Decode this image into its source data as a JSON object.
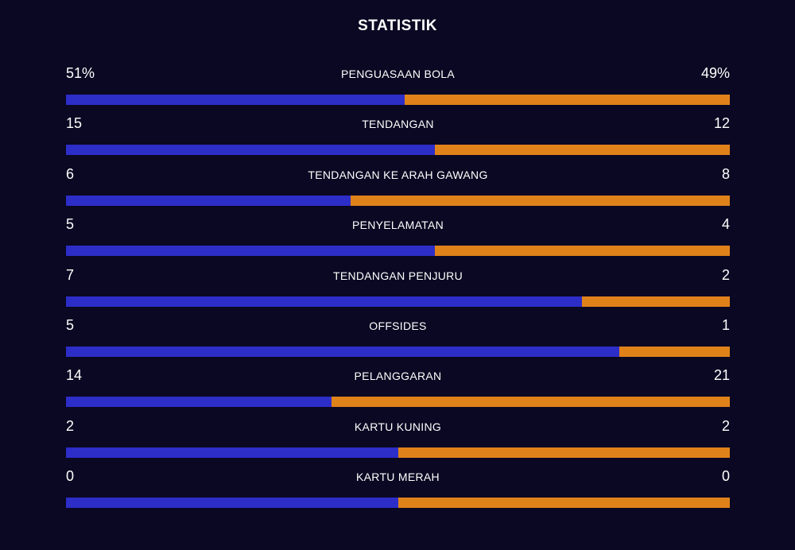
{
  "title": "STATISTIK",
  "colors": {
    "background": "#0a0822",
    "home": "#2d2dc8",
    "away": "#e0821a"
  },
  "stats": [
    {
      "label": "PENGUASAAN BOLA",
      "home": "51%",
      "away": "49%",
      "home_share": 0.51
    },
    {
      "label": "TENDANGAN",
      "home": "15",
      "away": "12",
      "home_share": 0.5556
    },
    {
      "label": "TENDANGAN KE ARAH GAWANG",
      "home": "6",
      "away": "8",
      "home_share": 0.4286
    },
    {
      "label": "PENYELAMATAN",
      "home": "5",
      "away": "4",
      "home_share": 0.5556
    },
    {
      "label": "TENDANGAN PENJURU",
      "home": "7",
      "away": "2",
      "home_share": 0.7778
    },
    {
      "label": "OFFSIDES",
      "home": "5",
      "away": "1",
      "home_share": 0.8333
    },
    {
      "label": "PELANGGARAN",
      "home": "14",
      "away": "21",
      "home_share": 0.4
    },
    {
      "label": "KARTU KUNING",
      "home": "2",
      "away": "2",
      "home_share": 0.5
    },
    {
      "label": "KARTU MERAH",
      "home": "0",
      "away": "0",
      "home_share": 0.5
    }
  ]
}
